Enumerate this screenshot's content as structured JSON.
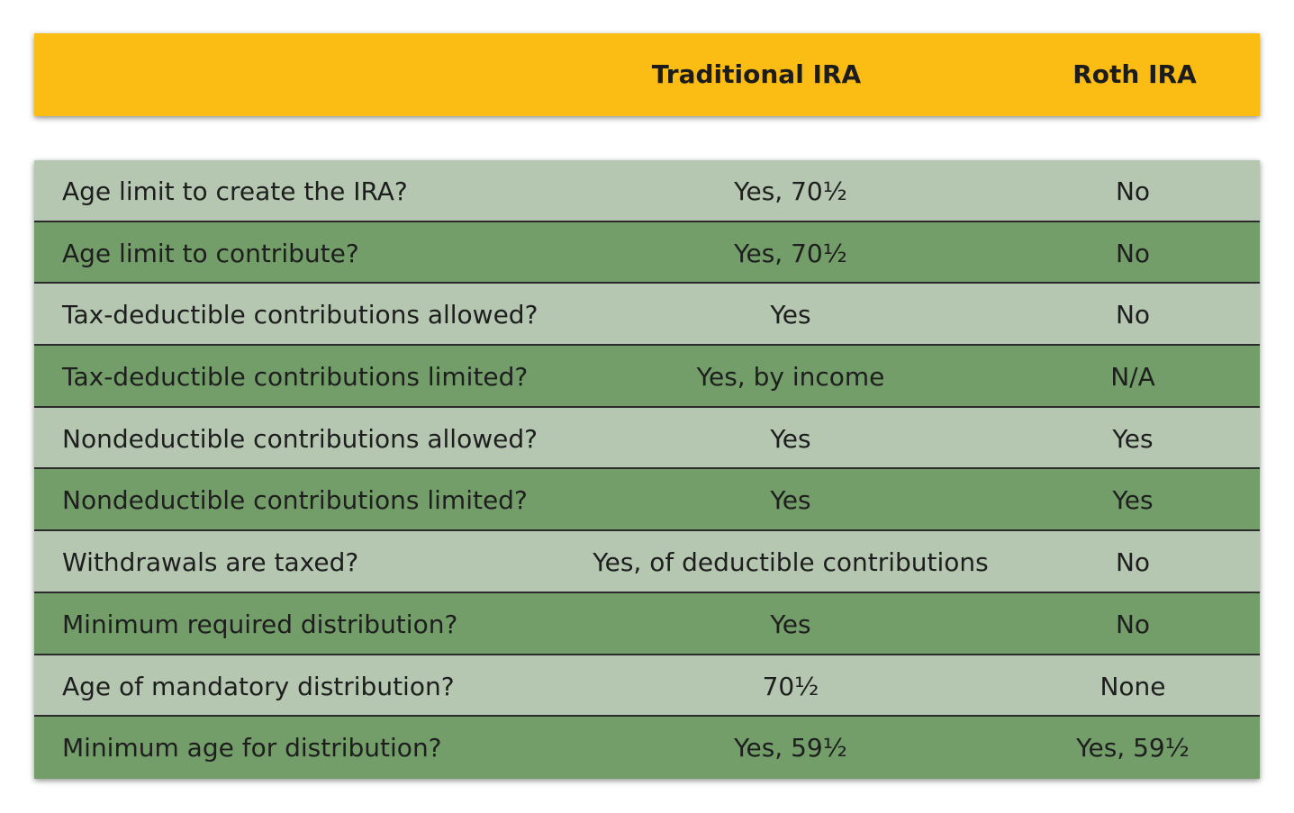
{
  "header": {
    "col_label": "",
    "col_traditional": "Traditional IRA",
    "col_roth": "Roth IRA"
  },
  "rows": [
    {
      "label": "Age limit to create the IRA?",
      "traditional": "Yes, 70½",
      "roth": "No"
    },
    {
      "label": "Age limit to contribute?",
      "traditional": "Yes, 70½",
      "roth": "No"
    },
    {
      "label": "Tax-deductible contributions allowed?",
      "traditional": "Yes",
      "roth": "No"
    },
    {
      "label": "Tax-deductible contributions limited?",
      "traditional": "Yes, by income",
      "roth": "N/A"
    },
    {
      "label": "Nondeductible contributions allowed?",
      "traditional": "Yes",
      "roth": "Yes"
    },
    {
      "label": "Nondeductible contributions limited?",
      "traditional": "Yes",
      "roth": "Yes"
    },
    {
      "label": "Withdrawals are taxed?",
      "traditional": "Yes, of deductible contributions",
      "roth": "No"
    },
    {
      "label": "Minimum required distribution?",
      "traditional": "Yes",
      "roth": "No"
    },
    {
      "label": "Age of mandatory distribution?",
      "traditional": "70½",
      "roth": "None"
    },
    {
      "label": "Minimum age for distribution?",
      "traditional": "Yes, 59½",
      "roth": "Yes, 59½"
    }
  ],
  "colors": {
    "header_bg": "#fbbd13",
    "row_light": "#b5c7b1",
    "row_dark": "#739e69"
  }
}
